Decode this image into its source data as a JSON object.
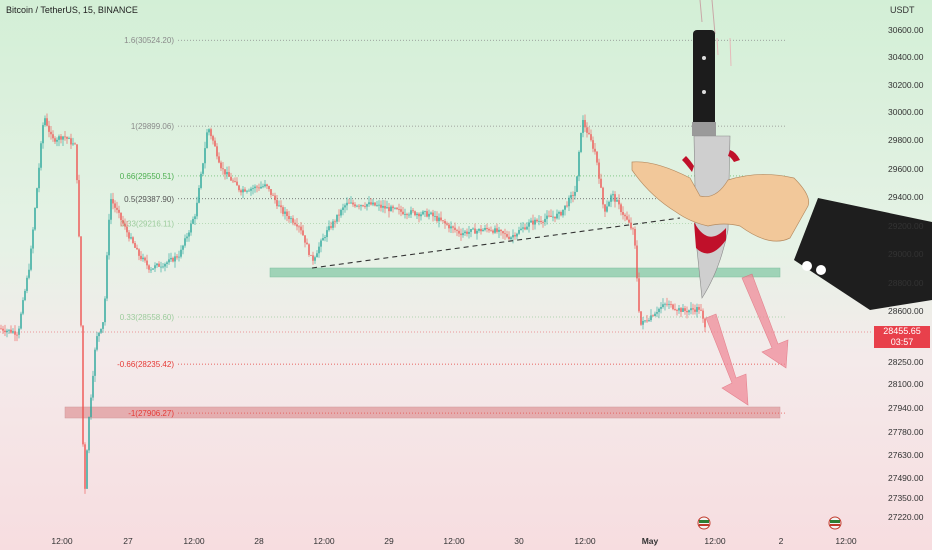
{
  "header": {
    "symbol_title": "Bitcoin / TetherUS, 15, BINANCE",
    "axis_unit": "USDT"
  },
  "colors": {
    "up": "#26a69a",
    "down": "#ef5350",
    "fib_line": "#9e9e9e",
    "support_zone": "#9fd3b7",
    "red_zone": "#e3a4a6",
    "price_tag": "#e8404b",
    "arrow": "#f08c9a"
  },
  "fib_levels": [
    {
      "label": "1.6(30524.20)",
      "price": 30524.2,
      "color": "#8a8a8a"
    },
    {
      "label": "1(29899.06)",
      "price": 29899.06,
      "color": "#8a8a8a"
    },
    {
      "label": "0.66(29550.51)",
      "price": 29550.51,
      "color": "#4caf50"
    },
    {
      "label": "0.5(29387.90)",
      "price": 29387.9,
      "color": "#555555"
    },
    {
      "label": "0.33(29216.11)",
      "price": 29216.11,
      "color": "#9ccc9c"
    },
    {
      "label": "0.33(28558.60)",
      "price": 28558.6,
      "color": "#9ccc9c"
    },
    {
      "label": "-0.66(28235.42)",
      "price": 28235.42,
      "color": "#e53935"
    },
    {
      "label": "-1(27906.27)",
      "price": 27906.27,
      "color": "#e53935"
    }
  ],
  "price_axis_ticks": [
    "30600.00",
    "30400.00",
    "30200.00",
    "30000.00",
    "29800.00",
    "29600.00",
    "29400.00",
    "29200.00",
    "29000.00",
    "28800.00",
    "28600.00",
    "28455.65",
    "28250.00",
    "28100.00",
    "27940.00",
    "27780.00",
    "27630.00",
    "27490.00",
    "27350.00",
    "27220.00"
  ],
  "time_axis_ticks": [
    "12:00",
    "27",
    "12:00",
    "28",
    "12:00",
    "29",
    "12:00",
    "30",
    "12:00",
    "May",
    "12:00",
    "2",
    "12:00"
  ],
  "current_price": {
    "value": "28455.65",
    "countdown": "03:57"
  }
}
